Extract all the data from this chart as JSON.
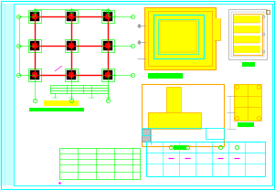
{
  "bg_color": "#ffffff",
  "green": "#00ff00",
  "red": "#ff0000",
  "yellow": "#ffff00",
  "cyan": "#00ffff",
  "orange": "#ffa500",
  "gray": "#a0a0a0",
  "black": "#000000",
  "magenta": "#ff00ff",
  "dark_brown": "#8B6914"
}
